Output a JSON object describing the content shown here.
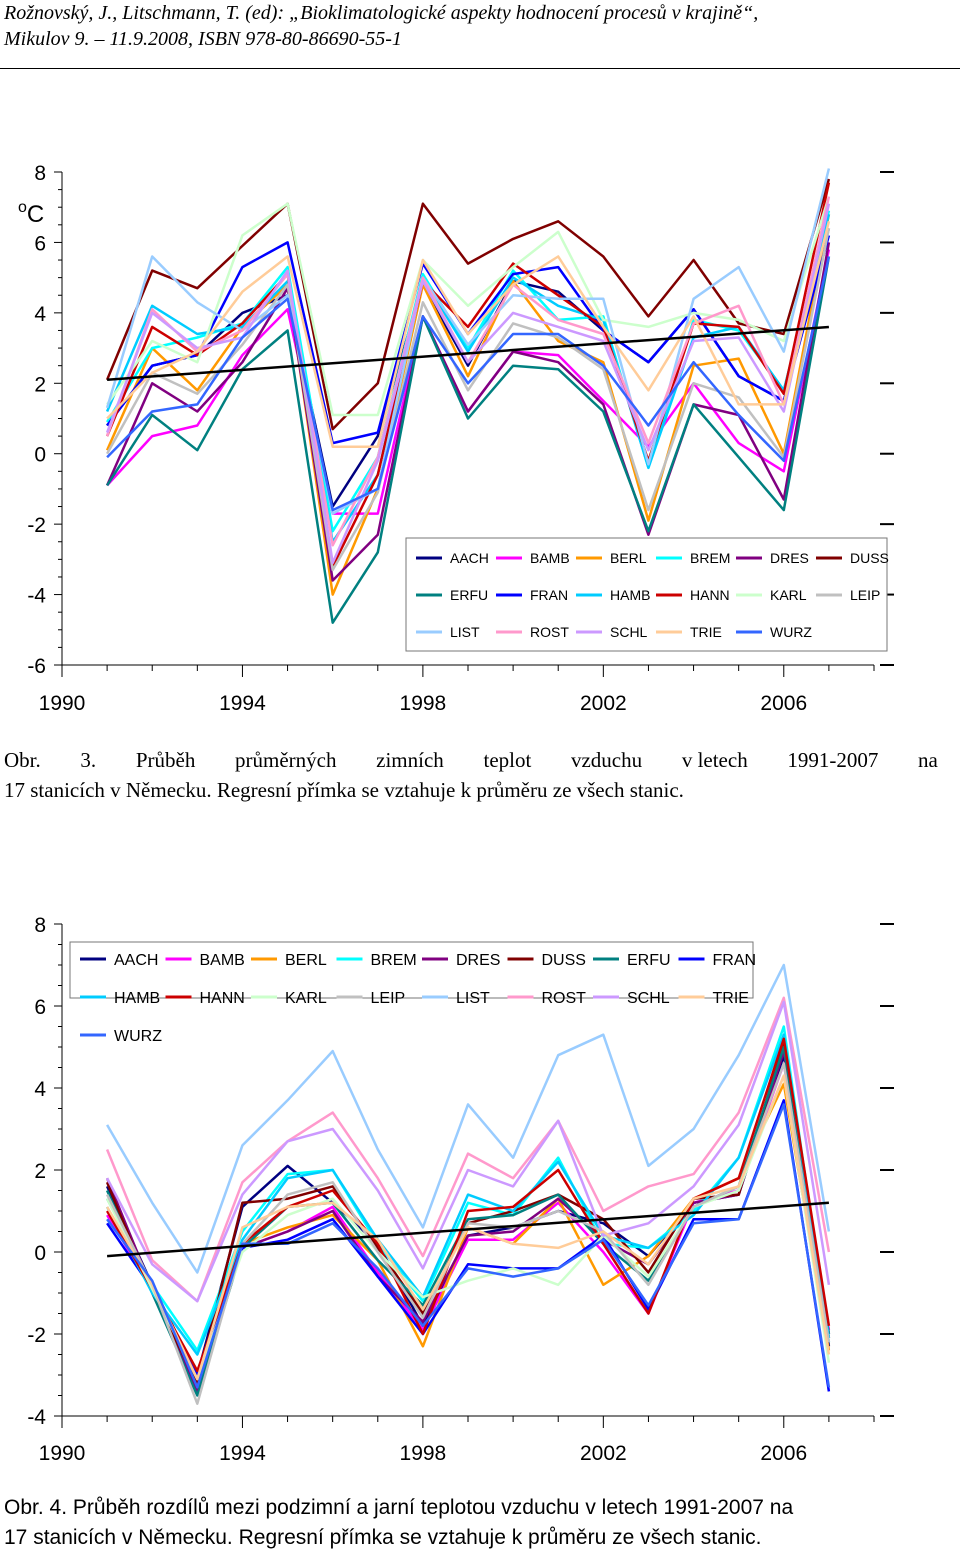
{
  "header": {
    "line1": "Rožnovský, J., Litschmann, T. (ed): „Bioklimatologické aspekty hodnocení procesů v krajině“,",
    "line2": "Mikulov 9. – 11.9.2008, ISBN 978-80-86690-55-1"
  },
  "figure3": {
    "caption_line1": [
      "Obr.",
      "3.",
      "Průběh",
      "průměrných",
      "zimních",
      "teplot",
      "vzduchu",
      "v letech",
      "1991-2007",
      "na"
    ],
    "caption_line2": "17 stanicích v Německu. Regresní přímka se vztahuje k průměru ze všech stanic."
  },
  "figure4": {
    "caption_line1": "Obr. 4. Průběh rozdílů mezi podzimní a jarní teplotou vzduchu v letech 1991-2007 na",
    "caption_line2": "17 stanicích v Německu. Regresní přímka se vztahuje k průměru ze všech stanic."
  },
  "chart_data": [
    {
      "type": "line",
      "title": "",
      "ylabel": "oC",
      "unit_sup": "o",
      "unit_main": "C",
      "xlim": [
        1990,
        2008
      ],
      "ylim": [
        -6,
        8
      ],
      "xticks": [
        1990,
        1994,
        1998,
        2002,
        2006
      ],
      "yticks": [
        -6,
        -4,
        -2,
        0,
        2,
        4,
        6,
        8
      ],
      "legend_cols": 6,
      "legend_position": "bottom-right",
      "x": [
        1991,
        1992,
        1993,
        1994,
        1995,
        1996,
        1997,
        1998,
        1999,
        2000,
        2001,
        2002,
        2003,
        2004,
        2005,
        2006,
        2007
      ],
      "regression": {
        "x": [
          1991,
          2007
        ],
        "y": [
          2.1,
          3.6
        ],
        "color": "#000000"
      },
      "series": [
        {
          "name": "AACH",
          "color": "#000080",
          "values": [
            0.8,
            2.5,
            2.8,
            4.0,
            4.5,
            -1.5,
            0.5,
            4.8,
            2.5,
            4.9,
            4.6,
            3.5,
            2.6,
            4.1,
            2.2,
            1.5,
            6.4
          ]
        },
        {
          "name": "BAMB",
          "color": "#FF00FF",
          "values": [
            -0.9,
            0.5,
            0.8,
            2.8,
            4.1,
            -1.7,
            -1.7,
            3.9,
            1.2,
            2.9,
            2.8,
            1.5,
            0.2,
            2.0,
            0.3,
            -0.5,
            5.8
          ]
        },
        {
          "name": "BERL",
          "color": "#FF9900",
          "values": [
            0.1,
            3.0,
            1.8,
            3.6,
            4.8,
            -4.0,
            -1.0,
            4.8,
            2.2,
            4.9,
            3.2,
            2.6,
            -1.9,
            2.5,
            2.7,
            0.0,
            6.8
          ]
        },
        {
          "name": "BREM",
          "color": "#00FFFF",
          "values": [
            0.9,
            3.0,
            3.3,
            3.7,
            5.3,
            -2.2,
            -0.1,
            5.1,
            3.0,
            5.2,
            3.8,
            3.9,
            -0.4,
            3.8,
            3.5,
            1.8,
            6.9
          ]
        },
        {
          "name": "DRES",
          "color": "#800080",
          "values": [
            -0.9,
            2.0,
            1.2,
            2.6,
            4.7,
            -3.6,
            -2.3,
            3.9,
            1.2,
            2.9,
            2.6,
            1.4,
            -2.3,
            1.4,
            1.1,
            -1.3,
            6.0
          ]
        },
        {
          "name": "DUSS",
          "color": "#800000",
          "values": [
            2.1,
            5.2,
            4.7,
            5.9,
            7.1,
            0.7,
            2.0,
            7.1,
            5.4,
            6.1,
            6.6,
            5.6,
            3.9,
            5.5,
            3.7,
            3.4,
            7.8
          ]
        },
        {
          "name": "ERFU",
          "color": "#008080",
          "values": [
            -0.9,
            1.1,
            0.1,
            2.4,
            3.5,
            -4.8,
            -2.8,
            3.9,
            1.0,
            2.5,
            2.4,
            1.2,
            -2.2,
            1.4,
            -0.1,
            -1.6,
            5.6
          ]
        },
        {
          "name": "FRAN",
          "color": "#0000FF",
          "values": [
            0.8,
            2.5,
            2.8,
            5.3,
            6.0,
            0.3,
            0.6,
            5.4,
            3.4,
            5.1,
            5.3,
            3.5,
            2.6,
            4.1,
            2.2,
            1.5,
            6.2
          ]
        },
        {
          "name": "HAMB",
          "color": "#00CCFF",
          "values": [
            1.2,
            4.2,
            3.4,
            3.6,
            4.9,
            -2.5,
            -0.6,
            5.0,
            2.9,
            5.0,
            4.2,
            3.8,
            -0.4,
            3.3,
            3.6,
            1.8,
            6.8
          ]
        },
        {
          "name": "HANN",
          "color": "#CC0000",
          "values": [
            0.5,
            3.6,
            2.8,
            3.7,
            5.1,
            -3.2,
            -0.6,
            4.9,
            3.6,
            5.4,
            4.5,
            3.6,
            -0.2,
            3.7,
            3.6,
            1.7,
            7.7
          ]
        },
        {
          "name": "KARL",
          "color": "#CCFFCC",
          "values": [
            1.4,
            3.2,
            2.6,
            6.2,
            7.1,
            1.1,
            1.1,
            5.5,
            4.2,
            5.3,
            6.3,
            3.8,
            3.6,
            4.0,
            3.8,
            3.2,
            7.3
          ]
        },
        {
          "name": "LEIP",
          "color": "#C0C0C0",
          "values": [
            0.0,
            2.3,
            1.7,
            3.1,
            4.8,
            -3.3,
            -1.1,
            4.3,
            1.8,
            3.7,
            3.3,
            2.4,
            -1.6,
            2.0,
            1.6,
            -0.1,
            6.4
          ]
        },
        {
          "name": "LIST",
          "color": "#99CCFF",
          "values": [
            1.3,
            5.6,
            4.3,
            3.5,
            4.5,
            -1.7,
            -1.0,
            5.0,
            3.1,
            4.5,
            4.4,
            4.4,
            -0.3,
            4.4,
            5.3,
            2.9,
            8.1
          ]
        },
        {
          "name": "ROST",
          "color": "#FF99CC",
          "values": [
            0.5,
            4.1,
            2.9,
            3.5,
            5.1,
            -2.6,
            -0.1,
            5.0,
            2.6,
            4.8,
            3.8,
            3.4,
            0.3,
            3.7,
            4.2,
            1.4,
            7.3
          ]
        },
        {
          "name": "SCHL",
          "color": "#CC99FF",
          "values": [
            0.6,
            4.0,
            3.0,
            3.3,
            5.2,
            -3.1,
            -0.2,
            4.9,
            2.6,
            4.0,
            3.6,
            3.2,
            0.1,
            3.2,
            3.3,
            1.2,
            7.1
          ]
        },
        {
          "name": "TRIE",
          "color": "#FFCC99",
          "values": [
            1.0,
            2.3,
            2.9,
            4.6,
            5.6,
            0.2,
            0.2,
            5.5,
            3.4,
            4.8,
            5.6,
            3.6,
            1.8,
            3.9,
            1.4,
            1.4,
            6.6
          ]
        },
        {
          "name": "WURZ",
          "color": "#3366FF",
          "values": [
            -0.1,
            1.2,
            1.4,
            3.3,
            4.4,
            -1.6,
            -1.0,
            3.9,
            2.0,
            3.4,
            3.4,
            2.5,
            0.8,
            2.6,
            1.1,
            -0.2,
            5.6
          ]
        }
      ]
    },
    {
      "type": "line",
      "title": "",
      "ylabel": "",
      "xlim": [
        1990,
        2008
      ],
      "ylim": [
        -4,
        8
      ],
      "xticks": [
        1990,
        1994,
        1998,
        2002,
        2006
      ],
      "yticks": [
        -4,
        -2,
        0,
        2,
        4,
        6,
        8
      ],
      "legend_cols": 8,
      "legend_position": "top-left",
      "x": [
        1991,
        1992,
        1993,
        1994,
        1995,
        1996,
        1997,
        1998,
        1999,
        2000,
        2001,
        2002,
        2003,
        2004,
        2005,
        2006,
        2007
      ],
      "regression": {
        "x": [
          1991,
          2007
        ],
        "y": [
          -0.1,
          1.2
        ],
        "color": "#000000"
      },
      "series": [
        {
          "name": "AACH",
          "color": "#000080",
          "values": [
            1.6,
            -0.8,
            -3.0,
            1.1,
            2.1,
            1.2,
            0.2,
            -1.8,
            0.4,
            0.6,
            1.0,
            0.7,
            -0.1,
            1.2,
            1.4,
            4.8,
            -2.3
          ]
        },
        {
          "name": "BAMB",
          "color": "#FF00FF",
          "values": [
            0.9,
            -0.9,
            -3.2,
            0.1,
            0.5,
            1.1,
            -0.5,
            -1.9,
            0.3,
            0.3,
            1.2,
            0.0,
            -1.5,
            1.2,
            1.5,
            4.6,
            -1.9
          ]
        },
        {
          "name": "BERL",
          "color": "#FF9900",
          "values": [
            1.3,
            -0.8,
            -3.4,
            0.2,
            0.6,
            0.9,
            -0.2,
            -2.3,
            0.6,
            0.2,
            1.3,
            -0.8,
            -0.1,
            1.3,
            1.8,
            4.1,
            -2.4
          ]
        },
        {
          "name": "BREM",
          "color": "#00FFFF",
          "values": [
            1.3,
            -0.8,
            -2.4,
            0.5,
            1.9,
            2.0,
            0.2,
            -1.2,
            1.2,
            0.9,
            2.3,
            0.2,
            0.1,
            1.0,
            2.3,
            5.5,
            -2.2
          ]
        },
        {
          "name": "DRES",
          "color": "#800080",
          "values": [
            1.8,
            -0.9,
            -3.4,
            0.1,
            0.5,
            1.0,
            -0.6,
            -1.7,
            0.4,
            0.5,
            1.3,
            0.3,
            -0.3,
            1.2,
            1.4,
            4.9,
            -2.0
          ]
        },
        {
          "name": "DUSS",
          "color": "#800000",
          "values": [
            1.7,
            -1.0,
            -3.2,
            1.2,
            1.3,
            1.6,
            0.1,
            -1.5,
            0.7,
            1.0,
            1.4,
            0.8,
            -0.5,
            1.3,
            1.4,
            5.1,
            -2.1
          ]
        },
        {
          "name": "ERFU",
          "color": "#008080",
          "values": [
            1.5,
            -1.0,
            -3.5,
            0.1,
            1.1,
            1.2,
            -0.2,
            -1.3,
            0.8,
            0.9,
            1.4,
            0.2,
            -0.7,
            1.1,
            1.6,
            5.0,
            -2.0
          ]
        },
        {
          "name": "FRAN",
          "color": "#0000FF",
          "values": [
            0.7,
            -0.9,
            -3.0,
            0.1,
            0.3,
            0.8,
            -0.6,
            -2.0,
            -0.3,
            -0.4,
            -0.4,
            0.4,
            -1.4,
            0.8,
            0.8,
            3.7,
            -3.4
          ]
        },
        {
          "name": "HAMB",
          "color": "#00CCFF",
          "values": [
            1.1,
            -1.0,
            -2.5,
            0.3,
            1.8,
            2.0,
            0.3,
            -1.1,
            1.4,
            1.0,
            2.2,
            0.4,
            0.1,
            0.9,
            2.3,
            5.3,
            -2.1
          ]
        },
        {
          "name": "HANN",
          "color": "#CC0000",
          "values": [
            1.0,
            -0.9,
            -2.9,
            0.2,
            1.1,
            1.5,
            0.2,
            -2.0,
            1.0,
            1.1,
            2.0,
            0.2,
            -1.5,
            1.3,
            1.8,
            5.2,
            -1.8
          ]
        },
        {
          "name": "KARL",
          "color": "#CCFFCC",
          "values": [
            1.3,
            -0.9,
            -3.1,
            0.0,
            0.9,
            1.3,
            0.0,
            -1.1,
            -0.7,
            -0.4,
            -0.8,
            0.4,
            -0.6,
            1.1,
            1.5,
            4.3,
            -2.7
          ]
        },
        {
          "name": "LEIP",
          "color": "#C0C0C0",
          "values": [
            1.4,
            -0.8,
            -3.7,
            0.2,
            1.4,
            1.7,
            0.0,
            -1.6,
            0.7,
            0.6,
            1.0,
            0.5,
            -0.8,
            1.1,
            1.6,
            4.6,
            -2.2
          ]
        },
        {
          "name": "LIST",
          "color": "#99CCFF",
          "values": [
            3.1,
            1.2,
            -0.5,
            2.6,
            3.7,
            4.9,
            2.5,
            0.6,
            3.6,
            2.3,
            4.8,
            5.3,
            2.1,
            3.0,
            4.8,
            7.0,
            0.5
          ]
        },
        {
          "name": "ROST",
          "color": "#FF99CC",
          "values": [
            2.5,
            -0.2,
            -1.2,
            1.7,
            2.7,
            3.4,
            1.8,
            -0.1,
            2.4,
            1.8,
            3.2,
            1.0,
            1.6,
            1.9,
            3.4,
            6.2,
            0.0
          ]
        },
        {
          "name": "SCHL",
          "color": "#CC99FF",
          "values": [
            1.8,
            -0.3,
            -1.2,
            1.4,
            2.7,
            3.0,
            1.5,
            -0.4,
            2.0,
            1.6,
            3.2,
            0.4,
            0.7,
            1.6,
            3.1,
            6.1,
            -0.8
          ]
        },
        {
          "name": "TRIE",
          "color": "#FFCC99",
          "values": [
            1.1,
            -0.8,
            -3.1,
            0.6,
            1.1,
            1.2,
            0.3,
            -1.4,
            0.6,
            0.2,
            0.1,
            0.5,
            -0.3,
            1.3,
            1.6,
            4.3,
            -2.5
          ]
        },
        {
          "name": "WURZ",
          "color": "#3366FF",
          "values": [
            0.8,
            -0.7,
            -3.3,
            0.2,
            0.2,
            0.7,
            -0.4,
            -1.8,
            -0.4,
            -0.6,
            -0.4,
            0.3,
            -1.3,
            0.7,
            0.8,
            3.6,
            -3.3
          ]
        }
      ]
    }
  ]
}
